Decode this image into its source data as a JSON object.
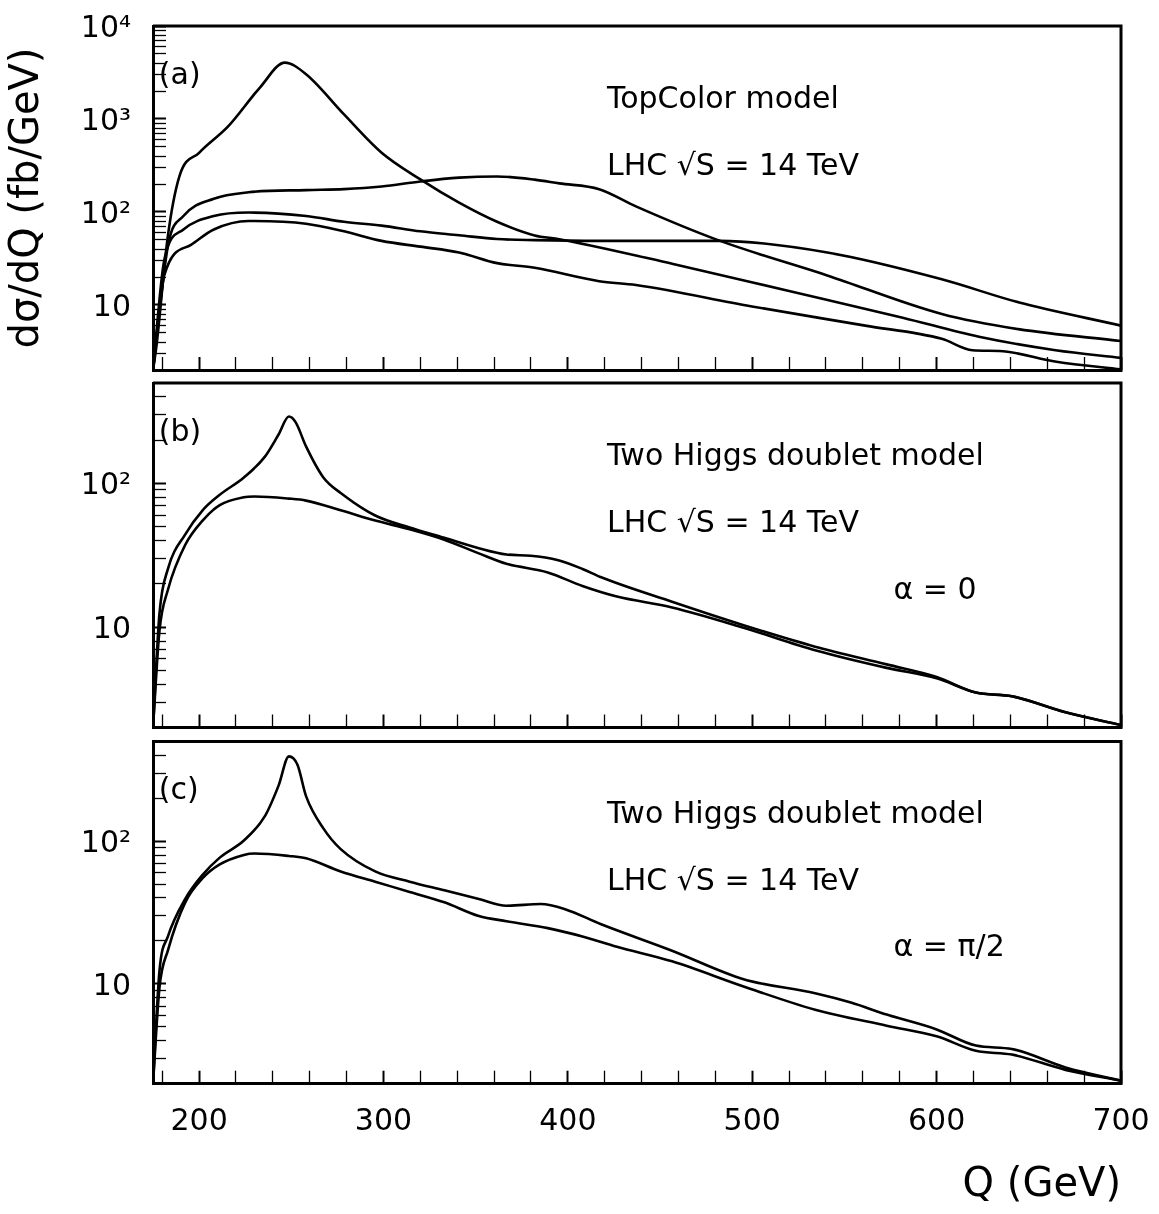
{
  "chart_data": [
    {
      "type": "line",
      "ylabel": "dσ/dQ (fb/GeV)",
      "log": "y",
      "tick_labels": "y",
      "annotations": [
        "(a)",
        "TopColor model",
        "LHC √S = 14 TeV"
      ],
      "xlim": [
        175,
        700
      ],
      "ylim": [
        2,
        10000
      ],
      "xticks": [
        {
          "value": 180,
          "label": null
        },
        200,
        {
          "value": 220,
          "label": null
        },
        {
          "value": 240,
          "label": null
        },
        {
          "value": 260,
          "label": null
        },
        {
          "value": 280,
          "label": null
        },
        300,
        {
          "value": 320,
          "label": null
        },
        {
          "value": 340,
          "label": null
        },
        {
          "value": 360,
          "label": null
        },
        {
          "value": 380,
          "label": null
        },
        400,
        {
          "value": 420,
          "label": null
        },
        {
          "value": 440,
          "label": null
        },
        {
          "value": 460,
          "label": null
        },
        {
          "value": 480,
          "label": null
        },
        500,
        {
          "value": 520,
          "label": null
        },
        {
          "value": 540,
          "label": null
        },
        {
          "value": 560,
          "label": null
        },
        {
          "value": 580,
          "label": null
        },
        600,
        {
          "value": 620,
          "label": null
        },
        {
          "value": 640,
          "label": null
        },
        {
          "value": 660,
          "label": null
        },
        {
          "value": 680,
          "label": null
        },
        700
      ],
      "yticks": [
        {
          "value": 3,
          "label": null
        },
        {
          "value": 4,
          "label": null
        },
        {
          "value": 5,
          "label": null
        },
        {
          "value": 6,
          "label": null
        },
        {
          "value": 7,
          "label": null
        },
        {
          "value": 8,
          "label": null
        },
        {
          "value": 9,
          "label": null
        },
        {
          "value": 10,
          "label": "10"
        },
        {
          "value": 20,
          "label": null
        },
        {
          "value": 30,
          "label": null
        },
        {
          "value": 40,
          "label": null
        },
        {
          "value": 50,
          "label": null
        },
        {
          "value": 60,
          "label": null
        },
        {
          "value": 70,
          "label": null
        },
        {
          "value": 80,
          "label": null
        },
        {
          "value": 90,
          "label": null
        },
        {
          "value": 100,
          "label": "10²"
        },
        {
          "value": 200,
          "label": null
        },
        {
          "value": 300,
          "label": null
        },
        {
          "value": 400,
          "label": null
        },
        {
          "value": 500,
          "label": null
        },
        {
          "value": 600,
          "label": null
        },
        {
          "value": 700,
          "label": null
        },
        {
          "value": 800,
          "label": null
        },
        {
          "value": 900,
          "label": null
        },
        {
          "value": 1000,
          "label": "10³"
        },
        {
          "value": 2000,
          "label": null
        },
        {
          "value": 3000,
          "label": null
        },
        {
          "value": 4000,
          "label": null
        },
        {
          "value": 5000,
          "label": null
        },
        {
          "value": 6000,
          "label": null
        },
        {
          "value": 7000,
          "label": null
        },
        {
          "value": 8000,
          "label": null
        },
        {
          "value": 9000,
          "label": null
        },
        {
          "value": 10000,
          "label": "10⁴"
        }
      ],
      "series": [
        {
          "color": "#000000",
          "x": [
            175,
            177,
            183,
            189.4,
            200,
            216,
            233,
            246.5,
            258,
            278.6,
            299,
            320,
            341,
            361.6,
            382,
            395.4,
            457.1,
            519.4,
            581.6,
            623,
            664.5,
            700
          ],
          "values": [
            2,
            3.8,
            54,
            245,
            433,
            843,
            2180,
            4040,
            3030,
            1120,
            434,
            224,
            126,
            78.5,
            56,
            51,
            27.6,
            14.2,
            7.3,
            4.55,
            3.26,
            2.7
          ]
        },
        {
          "color": "#000000",
          "x": [
            175,
            183.2,
            191.5,
            208,
            226.8,
            258,
            278.6,
            299,
            320,
            341,
            361.6,
            382,
            395.4,
            417,
            436.9,
            482.6,
            540.7,
            602.8,
            644.3,
            700
          ],
          "values": [
            2,
            44.4,
            90.5,
            139,
            163,
            172,
            176,
            188,
            213,
            234,
            241,
            223,
            203,
            176,
            115,
            48.9,
            20.8,
            8.0,
            5.5,
            4.1
          ]
        },
        {
          "color": "#000000",
          "x": [
            175,
            181.1,
            191.5,
            208,
            226.8,
            258,
            278.6,
            299,
            320,
            341,
            361.6,
            382,
            417,
            482.6,
            540.7,
            602.8,
            644.3,
            700
          ],
          "values": [
            2,
            30.3,
            64.9,
            90.5,
            98.6,
            90.5,
            78.5,
            71.4,
            62,
            56.3,
            51.2,
            49.8,
            48.9,
            48.9,
            36.7,
            18.9,
            10.7,
            6.0
          ]
        },
        {
          "color": "#000000",
          "x": [
            175,
            181.1,
            195.6,
            208,
            226.8,
            258,
            278.6,
            299,
            320,
            341,
            361.6,
            382,
            417,
            436.9,
            499.1,
            561.3,
            602.8,
            619.4,
            634,
            665,
            700
          ],
          "values": [
            2,
            20.8,
            44.4,
            64.9,
            80,
            74.9,
            62,
            48.9,
            42.4,
            36.7,
            28.2,
            25.1,
            18,
            16.4,
            9.7,
            6.0,
            4.33,
            3.26,
            3.2,
            2.45,
            2.03
          ]
        }
      ]
    },
    {
      "type": "line",
      "log": "y",
      "tick_labels": "y",
      "annotations": [
        "(b)",
        "Two Higgs doublet model",
        "LHC √S = 14 TeV",
        "α = 0"
      ],
      "xlim": [
        175,
        700
      ],
      "ylim": [
        2,
        500
      ],
      "xticks": [
        {
          "value": 180,
          "label": null
        },
        200,
        {
          "value": 220,
          "label": null
        },
        {
          "value": 240,
          "label": null
        },
        {
          "value": 260,
          "label": null
        },
        {
          "value": 280,
          "label": null
        },
        300,
        {
          "value": 320,
          "label": null
        },
        {
          "value": 340,
          "label": null
        },
        {
          "value": 360,
          "label": null
        },
        {
          "value": 380,
          "label": null
        },
        400,
        {
          "value": 420,
          "label": null
        },
        {
          "value": 440,
          "label": null
        },
        {
          "value": 460,
          "label": null
        },
        {
          "value": 480,
          "label": null
        },
        500,
        {
          "value": 520,
          "label": null
        },
        {
          "value": 540,
          "label": null
        },
        {
          "value": 560,
          "label": null
        },
        {
          "value": 580,
          "label": null
        },
        600,
        {
          "value": 620,
          "label": null
        },
        {
          "value": 640,
          "label": null
        },
        {
          "value": 660,
          "label": null
        },
        {
          "value": 680,
          "label": null
        },
        700
      ],
      "yticks": [
        {
          "value": 3,
          "label": null
        },
        {
          "value": 4,
          "label": null
        },
        {
          "value": 5,
          "label": null
        },
        {
          "value": 6,
          "label": null
        },
        {
          "value": 7,
          "label": null
        },
        {
          "value": 8,
          "label": null
        },
        {
          "value": 9,
          "label": null
        },
        {
          "value": 10,
          "label": "10"
        },
        {
          "value": 20,
          "label": null
        },
        {
          "value": 30,
          "label": null
        },
        {
          "value": 40,
          "label": null
        },
        {
          "value": 50,
          "label": null
        },
        {
          "value": 60,
          "label": null
        },
        {
          "value": 70,
          "label": null
        },
        {
          "value": 80,
          "label": null
        },
        {
          "value": 90,
          "label": null
        },
        {
          "value": 100,
          "label": "10²"
        },
        {
          "value": 200,
          "label": null
        },
        {
          "value": 300,
          "label": null
        },
        {
          "value": 400,
          "label": null
        }
      ],
      "series": [
        {
          "color": "#000000",
          "x": [
            175,
            178.5,
            183.1,
            192.5,
            201.9,
            211.2,
            224.3,
            235.6,
            243.1,
            248.7,
            252.4,
            258,
            267.4,
            276.8,
            295.5,
            314.2,
            333,
            351.7,
            366.7,
            379.8,
            394.8,
            407.9,
            417.7,
            456.5,
            495.3,
            534.1,
            572.9,
            600,
            621.3,
            640.8,
            669.9,
            700
          ],
          "values": [
            2,
            12.4,
            25.4,
            44.2,
            65,
            83.3,
            110,
            153,
            219,
            292,
            266,
            181,
            110,
            85.7,
            59.8,
            49.3,
            41.8,
            35.4,
            32,
            31.4,
            29.2,
            25.4,
            22.3,
            15.0,
            10.3,
            7.3,
            5.5,
            4.5,
            3.5,
            3.3,
            2.55,
            2.08
          ]
        },
        {
          "color": "#000000",
          "x": [
            175,
            178.5,
            183.1,
            192.5,
            201.9,
            211.2,
            224.3,
            230,
            248.7,
            258,
            276.8,
            295.5,
            314.2,
            333,
            351.7,
            366.7,
            389.1,
            407.9,
            426.6,
            456.5,
            495.3,
            534.1,
            572.9,
            600,
            621.3,
            640.8,
            669.9,
            700
          ],
          "values": [
            2,
            9.4,
            18.2,
            37.4,
            55.1,
            70.6,
            80.2,
            81.1,
            78.4,
            75.9,
            65,
            55.1,
            48,
            40.6,
            32.6,
            27.6,
            24,
            19.3,
            16.3,
            13.7,
            9.9,
            6.9,
            5.2,
            4.4,
            3.5,
            3.3,
            2.55,
            2.08
          ]
        }
      ]
    },
    {
      "type": "line",
      "xlabel": "Q (GeV)",
      "log": "y",
      "annotations": [
        "(c)",
        "Two Higgs doublet model",
        "LHC √S = 14 TeV",
        "α = π/2"
      ],
      "xlim": [
        175,
        700
      ],
      "ylim": [
        2,
        500
      ],
      "xticks": [
        {
          "value": 180,
          "label": null
        },
        200,
        {
          "value": 220,
          "label": null
        },
        {
          "value": 240,
          "label": null
        },
        {
          "value": 260,
          "label": null
        },
        {
          "value": 280,
          "label": null
        },
        300,
        {
          "value": 320,
          "label": null
        },
        {
          "value": 340,
          "label": null
        },
        {
          "value": 360,
          "label": null
        },
        {
          "value": 380,
          "label": null
        },
        400,
        {
          "value": 420,
          "label": null
        },
        {
          "value": 440,
          "label": null
        },
        {
          "value": 460,
          "label": null
        },
        {
          "value": 480,
          "label": null
        },
        500,
        {
          "value": 520,
          "label": null
        },
        {
          "value": 540,
          "label": null
        },
        {
          "value": 560,
          "label": null
        },
        {
          "value": 580,
          "label": null
        },
        600,
        {
          "value": 620,
          "label": null
        },
        {
          "value": 640,
          "label": null
        },
        {
          "value": 660,
          "label": null
        },
        {
          "value": 680,
          "label": null
        },
        700
      ],
      "yticks": [
        {
          "value": 3,
          "label": null
        },
        {
          "value": 4,
          "label": null
        },
        {
          "value": 5,
          "label": null
        },
        {
          "value": 6,
          "label": null
        },
        {
          "value": 7,
          "label": null
        },
        {
          "value": 8,
          "label": null
        },
        {
          "value": 9,
          "label": null
        },
        {
          "value": 10,
          "label": "10"
        },
        {
          "value": 20,
          "label": null
        },
        {
          "value": 30,
          "label": null
        },
        {
          "value": 40,
          "label": null
        },
        {
          "value": 50,
          "label": null
        },
        {
          "value": 60,
          "label": null
        },
        {
          "value": 70,
          "label": null
        },
        {
          "value": 80,
          "label": null
        },
        {
          "value": 90,
          "label": null
        },
        {
          "value": 100,
          "label": "10²"
        },
        {
          "value": 200,
          "label": null
        },
        {
          "value": 300,
          "label": null
        },
        {
          "value": 400,
          "label": null
        }
      ],
      "series": [
        {
          "color": "#000000",
          "x": [
            175,
            178.5,
            183.1,
            192.5,
            201.9,
            211.2,
            224.3,
            235.6,
            243.1,
            248.7,
            253.4,
            258,
            267.4,
            276.8,
            295.5,
            314.2,
            333,
            351.7,
            366.7,
            385.4,
            398.5,
            417.7,
            456.5,
            495.3,
            534.1,
            553.5,
            572.9,
            600,
            621.3,
            640.8,
            669.9,
            700
          ],
          "values": [
            2,
            12.3,
            21.5,
            39.4,
            58.1,
            76.7,
            101,
            149,
            245,
            393,
            342,
            207,
            123,
            88,
            61.4,
            52,
            45.3,
            39.4,
            35.3,
            36.3,
            33.4,
            26.3,
            17.1,
            10.8,
            8.6,
            7.4,
            6.1,
            4.8,
            3.7,
            3.5,
            2.6,
            2.1
          ]
        },
        {
          "color": "#000000",
          "x": [
            175,
            178.5,
            183.1,
            192.5,
            201.9,
            211.2,
            224.3,
            230,
            248.7,
            258,
            276.8,
            295.5,
            314.2,
            333,
            351.7,
            366.7,
            389.1,
            407.9,
            426.6,
            456.5,
            495.3,
            534.1,
            572.9,
            600,
            621.3,
            640.8,
            669.9,
            700
          ],
          "values": [
            2,
            9.4,
            17.2,
            37.3,
            55,
            68.7,
            80.1,
            81.9,
            78.8,
            75.9,
            61.4,
            52,
            44.1,
            37.3,
            29.9,
            27.5,
            24.6,
            21.5,
            18.2,
            14.4,
            9.6,
            6.6,
            5.1,
            4.3,
            3.4,
            3.2,
            2.5,
            2.1
          ]
        }
      ]
    }
  ]
}
